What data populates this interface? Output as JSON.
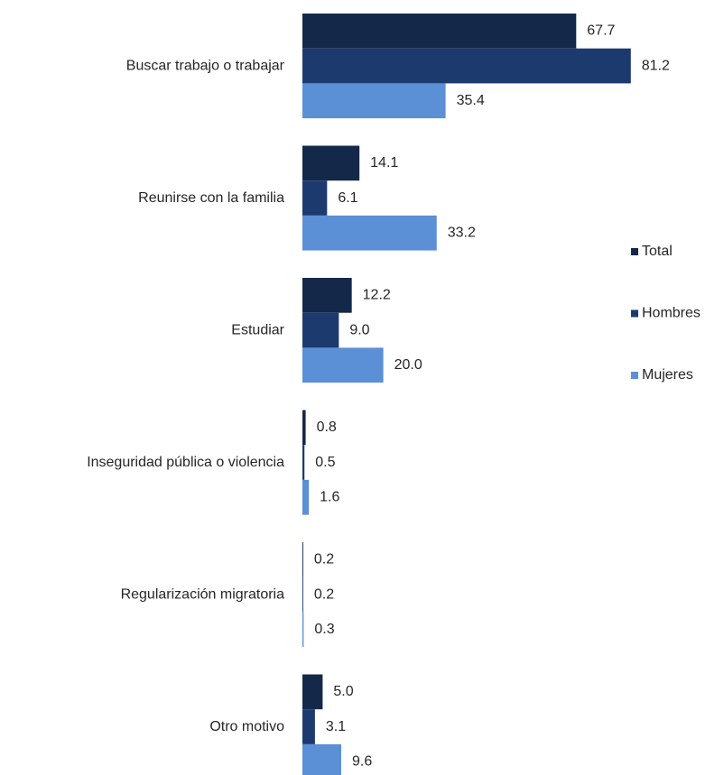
{
  "chart_data": {
    "type": "bar",
    "categories": [
      "Buscar trabajo o trabajar",
      "Reunirse con la familia",
      "Estudiar",
      "Inseguridad pública o violencia",
      "Regularización migratoria",
      "Otro motivo"
    ],
    "series": [
      {
        "name": "Total",
        "color": "#14284a",
        "values": [
          67.7,
          14.1,
          12.2,
          0.8,
          0.2,
          5.0
        ],
        "value_labels": [
          "67.7",
          "14.1",
          "12.2",
          "0.8",
          "0.2",
          "5.0"
        ]
      },
      {
        "name": "Hombres",
        "color": "#1c3a6e",
        "values": [
          81.2,
          6.1,
          9.0,
          0.5,
          0.2,
          3.1
        ],
        "value_labels": [
          "81.2",
          "6.1",
          "9.0",
          "0.5",
          "0.2",
          "3.1"
        ]
      },
      {
        "name": "Mujeres",
        "color": "#5b8fd6",
        "values": [
          35.4,
          33.2,
          20.0,
          1.6,
          0.3,
          9.6
        ],
        "value_labels": [
          "35.4",
          "33.2",
          "20.0",
          "1.6",
          "0.3",
          "9.6"
        ]
      }
    ],
    "legend": "right"
  }
}
